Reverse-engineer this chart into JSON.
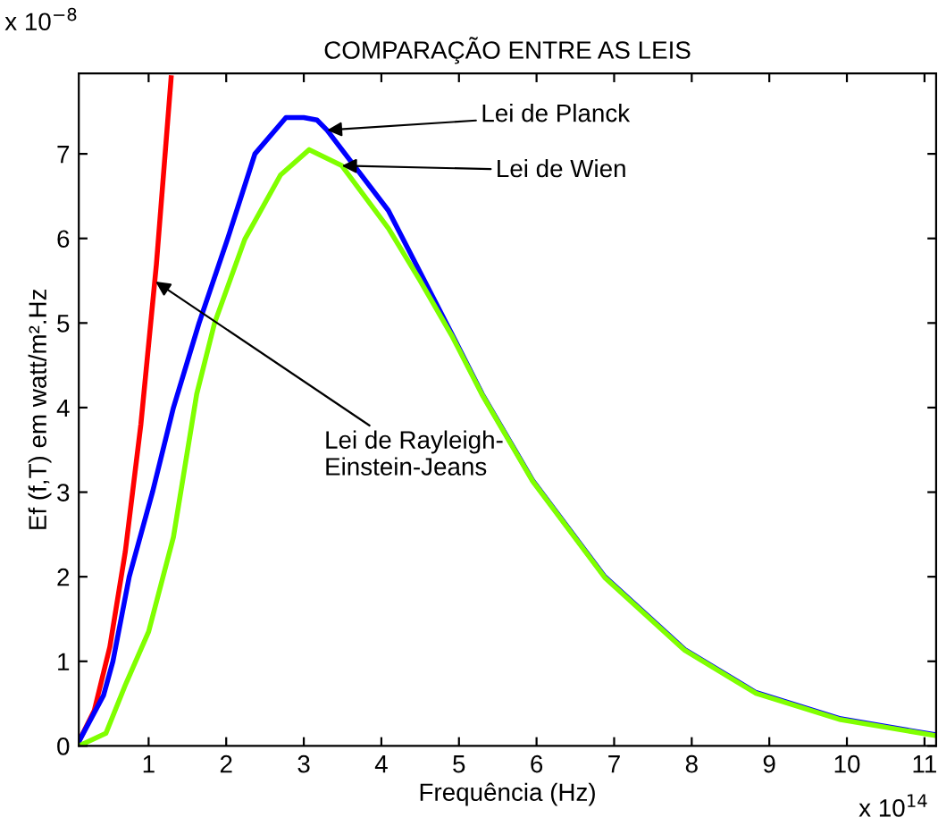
{
  "chart_data": {
    "type": "line",
    "title": "COMPARAÇÃO ENTRE AS LEIS",
    "xlabel": "Frequência (Hz)",
    "ylabel": "Ef (f,T) em watt/m².Hz",
    "xlim": [
      0.1,
      11.15
    ],
    "ylim": [
      0,
      7.95
    ],
    "xticks": [
      1,
      2,
      3,
      4,
      5,
      6,
      7,
      8,
      9,
      10,
      11
    ],
    "yticks": [
      0,
      1,
      2,
      3,
      4,
      5,
      6,
      7
    ],
    "grid": false,
    "legend": false,
    "marker": "none",
    "line_style": "solid",
    "series": [
      {
        "color": "#ff0000",
        "x": [
          0.1,
          0.3,
          0.5,
          0.7,
          0.9,
          1.1,
          1.29
        ],
        "values": [
          0.05,
          0.42,
          1.17,
          2.3,
          3.8,
          5.69,
          7.9
        ]
      },
      {
        "color": "#0000ff",
        "x": [
          0.1,
          0.42,
          0.54,
          0.75,
          1.05,
          1.32,
          1.65,
          2.02,
          2.37,
          2.77,
          3.0,
          3.17,
          3.3,
          4.09,
          4.92,
          5.3,
          5.95,
          6.88,
          7.91,
          8.83,
          9.92,
          11.15
        ],
        "values": [
          0.05,
          0.6,
          1.0,
          2.0,
          3.0,
          4.0,
          5.0,
          6.0,
          7.0,
          7.43,
          7.43,
          7.4,
          7.28,
          6.33,
          4.85,
          4.16,
          3.14,
          2.0,
          1.14,
          0.63,
          0.32,
          0.13
        ]
      },
      {
        "color": "#80ff00",
        "x": [
          0.1,
          0.45,
          0.7,
          1.0,
          1.32,
          1.62,
          1.85,
          2.24,
          2.7,
          3.07,
          3.49,
          4.09,
          4.5,
          4.92,
          5.3,
          5.95,
          6.88,
          7.91,
          8.83,
          9.92,
          11.15
        ],
        "values": [
          0.0,
          0.15,
          0.72,
          1.35,
          2.47,
          4.16,
          5.0,
          5.99,
          6.75,
          7.05,
          6.86,
          6.12,
          5.5,
          4.83,
          4.15,
          3.13,
          1.99,
          1.13,
          0.62,
          0.31,
          0.12
        ]
      }
    ],
    "annotations": [
      {
        "text": "Lei de Planck",
        "x": 3.3,
        "y": 7.28
      },
      {
        "text": "Lei de Wien",
        "x": 3.49,
        "y": 6.86
      },
      {
        "text": "Lei de Rayleigh-\nEinstein-Jeans",
        "x": 1.09,
        "y": 5.49
      },
      "x 10$^{−8}$",
      "x 10$^{14}$"
    ]
  }
}
